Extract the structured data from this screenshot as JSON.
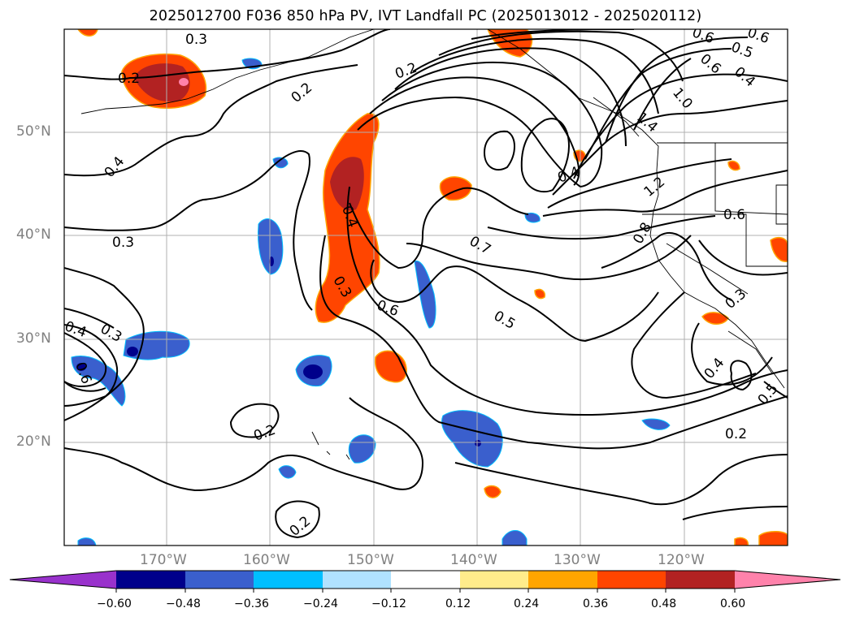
{
  "title": "2025012700 F036 850 hPa PV, IVT Landfall PC (2025013012 - 2025020112)",
  "map": {
    "lat_ticks": [
      "50°N",
      "40°N",
      "30°N",
      "20°N"
    ],
    "lon_ticks": [
      "170°W",
      "160°W",
      "150°W",
      "140°W",
      "130°W",
      "120°W"
    ],
    "contour_labels": [
      "0.3",
      "0.2",
      "0.2",
      "0.2",
      "0.4",
      "0.3",
      "0.4",
      "0.3",
      "0.6",
      "0.4",
      "0.3",
      "0.6",
      "0.7",
      "0.5",
      "0.4",
      "0.8",
      "1.2",
      "1.4",
      "1.0",
      "0.6",
      "0.5",
      "0.6",
      "0.4",
      "0.6",
      "0.2",
      "0.2",
      "0.6",
      "0.3",
      "0.4",
      "0.5",
      "0.2"
    ]
  },
  "colorbar": {
    "tick_labels": [
      "−0.60",
      "−0.48",
      "−0.36",
      "−0.24",
      "−0.12",
      "0.12",
      "0.24",
      "0.36",
      "0.48",
      "0.60"
    ],
    "colors": [
      "#9932cc",
      "#00008b",
      "#3a5fcd",
      "#00bfff",
      "#b0e2ff",
      "#ffffff",
      "#ffec8b",
      "#ffa500",
      "#ff4500",
      "#b22222",
      "#ff82ab"
    ]
  }
}
